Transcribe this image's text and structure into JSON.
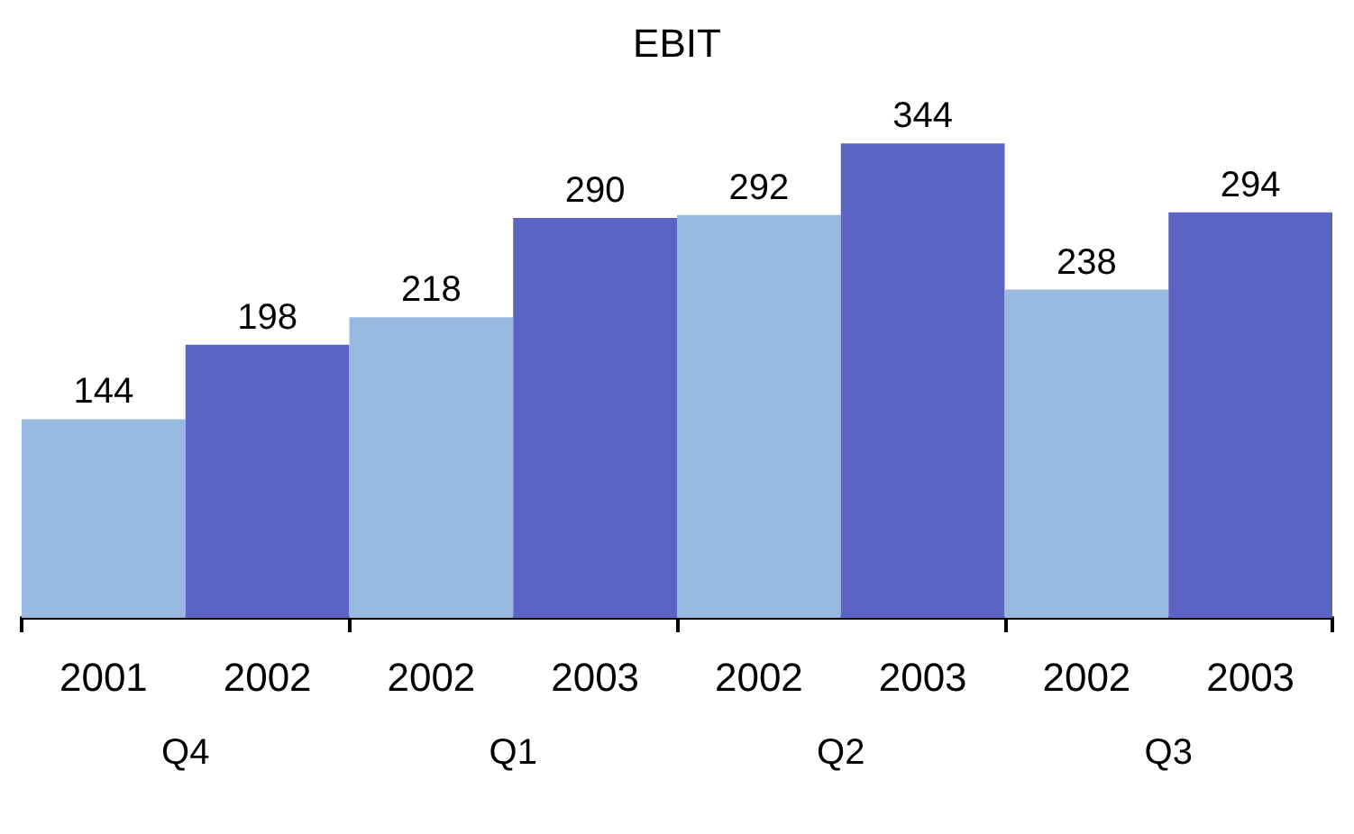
{
  "chart_data": {
    "type": "bar",
    "title": "EBIT",
    "categories": [
      "2001",
      "2002",
      "2002",
      "2003",
      "2002",
      "2003",
      "2002",
      "2003"
    ],
    "values": [
      144,
      198,
      218,
      290,
      292,
      344,
      238,
      294
    ],
    "colors": [
      "#97b9e0",
      "#5b64c2",
      "#97b9e0",
      "#5b64c2",
      "#97b9e0",
      "#5b64c2",
      "#97b9e0",
      "#5b64c2"
    ],
    "data_labels": true,
    "annotations": [
      "Q4",
      "Q1",
      "Q2",
      "Q3"
    ]
  }
}
